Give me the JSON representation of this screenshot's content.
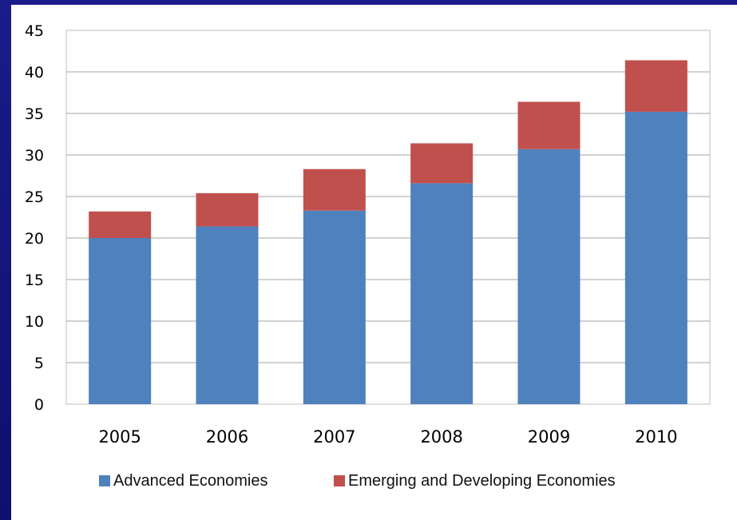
{
  "chart_data": {
    "type": "bar",
    "stacked": true,
    "categories": [
      "2005",
      "2006",
      "2007",
      "2008",
      "2009",
      "2010"
    ],
    "series": [
      {
        "name": "Advanced Economies",
        "values": [
          20.0,
          21.4,
          23.3,
          26.6,
          30.7,
          35.2
        ],
        "color": "#4f81bd"
      },
      {
        "name": "Emerging and Developing Economies",
        "values": [
          3.2,
          4.0,
          5.0,
          4.8,
          5.7,
          6.2
        ],
        "color": "#c0504d"
      }
    ],
    "ylim": [
      0,
      45
    ],
    "yticks": [
      "0",
      "5",
      "10",
      "15",
      "20",
      "25",
      "30",
      "35",
      "40",
      "45"
    ],
    "grid": true,
    "legend_position": "bottom",
    "title": "",
    "xlabel": "",
    "ylabel": ""
  }
}
